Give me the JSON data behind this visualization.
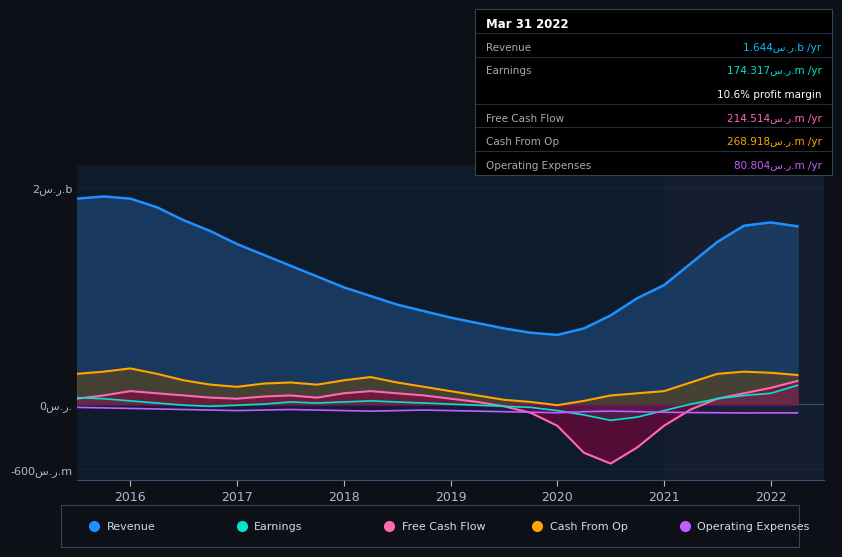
{
  "background_color": "#0d1117",
  "plot_bg_color": "#0d1b2a",
  "highlight_bg_color": "#162032",
  "ylabel_top": "2س.ر.b",
  "ylabel_mid": "0س.ر.",
  "ylabel_bot": "-600س.ر.m",
  "ylim": [
    -700,
    2200
  ],
  "xlim": [
    2015.5,
    2022.5
  ],
  "xticks": [
    2016,
    2017,
    2018,
    2019,
    2020,
    2021,
    2022
  ],
  "yticks": [
    2000,
    0,
    -600
  ],
  "ytick_labels": [
    "2س.ر.b",
    "0س.ر.",
    "-600س.ر.m"
  ],
  "highlight_start": 2021.0,
  "highlight_end": 2022.5,
  "series": {
    "Revenue": {
      "color": "#1e90ff",
      "fill_color": "#1e4a7a",
      "x": [
        2015.5,
        2015.75,
        2016.0,
        2016.25,
        2016.5,
        2016.75,
        2017.0,
        2017.25,
        2017.5,
        2017.75,
        2018.0,
        2018.25,
        2018.5,
        2018.75,
        2019.0,
        2019.25,
        2019.5,
        2019.75,
        2020.0,
        2020.25,
        2020.5,
        2020.75,
        2021.0,
        2021.25,
        2021.5,
        2021.75,
        2022.0,
        2022.25
      ],
      "y": [
        1900,
        1920,
        1900,
        1820,
        1700,
        1600,
        1480,
        1380,
        1280,
        1180,
        1080,
        1000,
        920,
        860,
        800,
        750,
        700,
        660,
        640,
        700,
        820,
        980,
        1100,
        1300,
        1500,
        1650,
        1680,
        1644
      ]
    },
    "Earnings": {
      "color": "#00e5cc",
      "fill_color": "#00e5cc",
      "x": [
        2015.5,
        2015.75,
        2016.0,
        2016.25,
        2016.5,
        2016.75,
        2017.0,
        2017.25,
        2017.5,
        2017.75,
        2018.0,
        2018.25,
        2018.5,
        2018.75,
        2019.0,
        2019.25,
        2019.5,
        2019.75,
        2020.0,
        2020.25,
        2020.5,
        2020.75,
        2021.0,
        2021.25,
        2021.5,
        2021.75,
        2022.0,
        2022.25
      ],
      "y": [
        60,
        50,
        30,
        10,
        -10,
        -20,
        -10,
        0,
        20,
        10,
        20,
        30,
        20,
        10,
        0,
        -10,
        -20,
        -30,
        -60,
        -100,
        -150,
        -120,
        -60,
        0,
        50,
        80,
        100,
        174
      ]
    },
    "FreeCashFlow": {
      "color": "#ff69b4",
      "fill_color": "#8b0040",
      "x": [
        2015.5,
        2015.75,
        2016.0,
        2016.25,
        2016.5,
        2016.75,
        2017.0,
        2017.25,
        2017.5,
        2017.75,
        2018.0,
        2018.25,
        2018.5,
        2018.75,
        2019.0,
        2019.25,
        2019.5,
        2019.75,
        2020.0,
        2020.25,
        2020.5,
        2020.75,
        2021.0,
        2021.25,
        2021.5,
        2021.75,
        2022.0,
        2022.25
      ],
      "y": [
        50,
        80,
        120,
        100,
        80,
        60,
        50,
        70,
        80,
        60,
        100,
        120,
        100,
        80,
        50,
        20,
        -20,
        -80,
        -200,
        -450,
        -550,
        -400,
        -200,
        -50,
        50,
        100,
        150,
        214
      ]
    },
    "CashFromOp": {
      "color": "#ffa500",
      "fill_color": "#7a4a00",
      "x": [
        2015.5,
        2015.75,
        2016.0,
        2016.25,
        2016.5,
        2016.75,
        2017.0,
        2017.25,
        2017.5,
        2017.75,
        2018.0,
        2018.25,
        2018.5,
        2018.75,
        2019.0,
        2019.25,
        2019.5,
        2019.75,
        2020.0,
        2020.25,
        2020.5,
        2020.75,
        2021.0,
        2021.25,
        2021.5,
        2021.75,
        2022.0,
        2022.25
      ],
      "y": [
        280,
        300,
        330,
        280,
        220,
        180,
        160,
        190,
        200,
        180,
        220,
        250,
        200,
        160,
        120,
        80,
        40,
        20,
        -10,
        30,
        80,
        100,
        120,
        200,
        280,
        300,
        290,
        269
      ]
    },
    "OperatingExpenses": {
      "color": "#bf5fff",
      "fill_color": "#6a1f9a",
      "x": [
        2015.5,
        2015.75,
        2016.0,
        2016.25,
        2016.5,
        2016.75,
        2017.0,
        2017.25,
        2017.5,
        2017.75,
        2018.0,
        2018.25,
        2018.5,
        2018.75,
        2019.0,
        2019.25,
        2019.5,
        2019.75,
        2020.0,
        2020.25,
        2020.5,
        2020.75,
        2021.0,
        2021.25,
        2021.5,
        2021.75,
        2022.0,
        2022.25
      ],
      "y": [
        -30,
        -35,
        -40,
        -45,
        -50,
        -55,
        -60,
        -55,
        -50,
        -55,
        -60,
        -65,
        -60,
        -55,
        -60,
        -65,
        -70,
        -75,
        -80,
        -70,
        -65,
        -70,
        -75,
        -78,
        -80,
        -82,
        -81,
        -81
      ]
    }
  },
  "info_rows": [
    {
      "label": "Mar 31 2022",
      "value": null,
      "color": null,
      "is_header": true
    },
    {
      "label": "Revenue",
      "value": "1.644س.ر.b /yr",
      "color": "#00bfff",
      "is_header": false
    },
    {
      "label": "Earnings",
      "value": "174.317س.ر.m /yr",
      "color": "#00e5cc",
      "is_header": false
    },
    {
      "label": "",
      "value": "10.6% profit margin",
      "color": "#ffffff",
      "is_header": false
    },
    {
      "label": "Free Cash Flow",
      "value": "214.514س.ر.m /yr",
      "color": "#ff69b4",
      "is_header": false
    },
    {
      "label": "Cash From Op",
      "value": "268.918س.ر.m /yr",
      "color": "#ffa500",
      "is_header": false
    },
    {
      "label": "Operating Expenses",
      "value": "80.804س.ر.m /yr",
      "color": "#bf5fff",
      "is_header": false
    }
  ],
  "divider_rows": [
    1,
    2,
    4,
    5,
    6
  ],
  "legend": [
    {
      "label": "Revenue",
      "color": "#1e90ff"
    },
    {
      "label": "Earnings",
      "color": "#00e5cc"
    },
    {
      "label": "Free Cash Flow",
      "color": "#ff69b4"
    },
    {
      "label": "Cash From Op",
      "color": "#ffa500"
    },
    {
      "label": "Operating Expenses",
      "color": "#bf5fff"
    }
  ],
  "grid_color": "#1e3050",
  "axis_color": "#3a5070",
  "text_color": "#aabbcc"
}
